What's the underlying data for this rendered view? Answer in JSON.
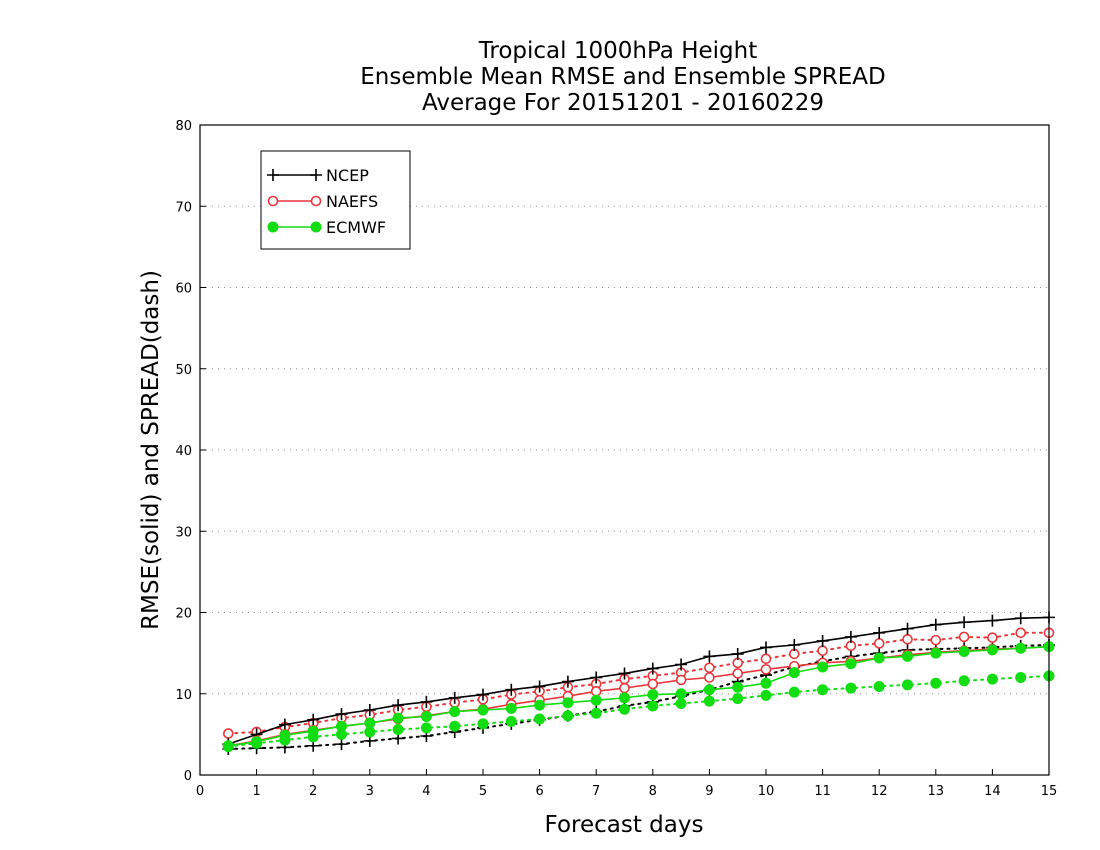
{
  "chart_data": {
    "type": "line",
    "title": [
      "Tropical 1000hPa Height",
      "Ensemble Mean RMSE and Ensemble SPREAD",
      "Average For 20151201 - 20160229"
    ],
    "xlabel": "Forecast days",
    "ylabel": "RMSE(solid) and SPREAD(dash)",
    "xlim": [
      0,
      15
    ],
    "ylim": [
      0,
      80
    ],
    "xticks": [
      0,
      1,
      2,
      3,
      4,
      5,
      6,
      7,
      8,
      9,
      10,
      11,
      12,
      13,
      14,
      15
    ],
    "yticks": [
      0,
      10,
      20,
      30,
      40,
      50,
      60,
      70,
      80
    ],
    "grid": "horizontal dotted",
    "legend": {
      "position": "top-left",
      "entries": [
        {
          "name": "NCEP",
          "color": "#000000",
          "marker": "plus"
        },
        {
          "name": "NAEFS",
          "color": "#e8373b",
          "marker": "open-circle"
        },
        {
          "name": "ECMWF",
          "color": "#11dd11",
          "marker": "filled-circle"
        }
      ]
    },
    "x": [
      0.5,
      1,
      1.5,
      2,
      2.5,
      3,
      3.5,
      4,
      4.5,
      5,
      5.5,
      6,
      6.5,
      7,
      7.5,
      8,
      8.5,
      9,
      9.5,
      10,
      10.5,
      11,
      11.5,
      12,
      12.5,
      13,
      13.5,
      14,
      14.5,
      15
    ],
    "series": [
      {
        "name": "NCEP",
        "metric": "RMSE",
        "style": "solid",
        "color": "#000000",
        "marker": "plus",
        "values": [
          3.8,
          5.0,
          6.2,
          6.8,
          7.5,
          8.0,
          8.6,
          9.0,
          9.5,
          9.9,
          10.5,
          10.9,
          11.5,
          12.0,
          12.5,
          13.1,
          13.6,
          14.6,
          14.9,
          15.7,
          16.0,
          16.5,
          17.0,
          17.5,
          18.0,
          18.5,
          18.8,
          19.0,
          19.3,
          19.4
        ]
      },
      {
        "name": "NCEP",
        "metric": "SPREAD",
        "style": "dash",
        "color": "#000000",
        "marker": "plus",
        "values": [
          3.2,
          3.3,
          3.4,
          3.6,
          3.8,
          4.2,
          4.5,
          4.8,
          5.3,
          5.8,
          6.3,
          6.8,
          7.3,
          7.8,
          8.5,
          9.0,
          9.7,
          10.5,
          11.5,
          12.3,
          13.3,
          14.0,
          14.6,
          15.0,
          15.4,
          15.5,
          15.6,
          15.7,
          15.9,
          16.0
        ]
      },
      {
        "name": "NAEFS",
        "metric": "RMSE",
        "style": "solid",
        "color": "#e8373b",
        "marker": "open-circle",
        "values": [
          3.6,
          4.2,
          5.0,
          5.5,
          6.0,
          6.4,
          6.9,
          7.3,
          7.8,
          8.1,
          8.7,
          9.2,
          9.7,
          10.3,
          10.7,
          11.2,
          11.7,
          12.0,
          12.5,
          13.0,
          13.4,
          13.8,
          14.0,
          14.4,
          14.8,
          15.1,
          15.3,
          15.5,
          15.6,
          15.8
        ]
      },
      {
        "name": "NAEFS",
        "metric": "SPREAD",
        "style": "dash",
        "color": "#e8373b",
        "marker": "open-circle",
        "values": [
          5.1,
          5.3,
          5.9,
          6.4,
          7.0,
          7.4,
          8.0,
          8.4,
          8.9,
          9.3,
          9.9,
          10.3,
          10.8,
          11.2,
          11.8,
          12.2,
          12.6,
          13.2,
          13.8,
          14.3,
          14.9,
          15.3,
          15.9,
          16.2,
          16.7,
          16.6,
          17.0,
          16.9,
          17.5,
          17.5
        ]
      },
      {
        "name": "ECMWF",
        "metric": "RMSE",
        "style": "solid",
        "color": "#11dd11",
        "marker": "filled-circle",
        "values": [
          3.6,
          4.1,
          4.9,
          5.4,
          6.0,
          6.4,
          7.0,
          7.2,
          7.8,
          8.0,
          8.2,
          8.6,
          8.9,
          9.2,
          9.5,
          9.9,
          10.0,
          10.5,
          10.8,
          11.3,
          12.6,
          13.3,
          13.7,
          14.4,
          14.6,
          15.0,
          15.2,
          15.4,
          15.6,
          15.8
        ]
      },
      {
        "name": "ECMWF",
        "metric": "SPREAD",
        "style": "dash",
        "color": "#11dd11",
        "marker": "filled-circle",
        "values": [
          3.5,
          3.9,
          4.3,
          4.7,
          5.0,
          5.3,
          5.6,
          5.8,
          6.0,
          6.3,
          6.6,
          6.9,
          7.3,
          7.6,
          8.1,
          8.5,
          8.8,
          9.1,
          9.4,
          9.8,
          10.2,
          10.5,
          10.7,
          10.9,
          11.1,
          11.3,
          11.6,
          11.8,
          12.0,
          12.2
        ]
      }
    ]
  }
}
